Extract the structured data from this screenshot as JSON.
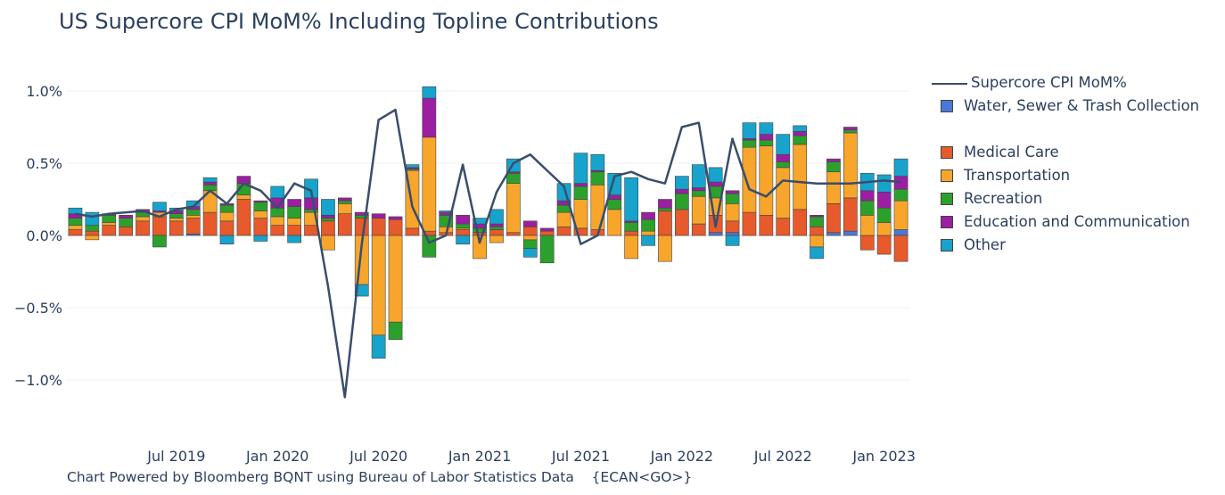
{
  "title": "US Supercore CPI MoM% Including Topline Contributions",
  "source_note": "Chart Powered by Bloomberg BQNT using Bureau of Labor Statistics Data    {ECAN<GO>}",
  "chart_data": {
    "type": "bar",
    "barmode": "relative",
    "title": "US Supercore CPI MoM% Including Topline Contributions",
    "xlabel": "",
    "ylabel": "",
    "ylim": [
      -1.35,
      1.1
    ],
    "y_ticks": [
      1.0,
      0.5,
      0.0,
      -0.5,
      -1.0
    ],
    "y_tick_labels": [
      "1.0%",
      "0.5%",
      "0.0%",
      "−0.5%",
      "−1.0%"
    ],
    "x_ticks": [
      {
        "index": 6,
        "label": "Jul 2019"
      },
      {
        "index": 12,
        "label": "Jan 2020"
      },
      {
        "index": 18,
        "label": "Jul 2020"
      },
      {
        "index": 24,
        "label": "Jan 2021"
      },
      {
        "index": 30,
        "label": "Jul 2021"
      },
      {
        "index": 36,
        "label": "Jan 2022"
      },
      {
        "index": 42,
        "label": "Jul 2022"
      },
      {
        "index": 48,
        "label": "Jan 2023"
      }
    ],
    "grid": true,
    "legend_position": "right",
    "categories": [
      "2019-01",
      "2019-02",
      "2019-03",
      "2019-04",
      "2019-05",
      "2019-06",
      "2019-07",
      "2019-08",
      "2019-09",
      "2019-10",
      "2019-11",
      "2019-12",
      "2020-01",
      "2020-02",
      "2020-03",
      "2020-04",
      "2020-05",
      "2020-06",
      "2020-07",
      "2020-08",
      "2020-09",
      "2020-10",
      "2020-11",
      "2020-12",
      "2021-01",
      "2021-02",
      "2021-03",
      "2021-04",
      "2021-05",
      "2021-06",
      "2021-07",
      "2021-08",
      "2021-09",
      "2021-10",
      "2021-11",
      "2021-12",
      "2022-01",
      "2022-02",
      "2022-03",
      "2022-04",
      "2022-05",
      "2022-06",
      "2022-07",
      "2022-08",
      "2022-09",
      "2022-10",
      "2022-11",
      "2022-12",
      "2023-01",
      "2023-02"
    ],
    "series": [
      {
        "name": "Water, Sewer & Trash Collection",
        "color": "#4a78d6",
        "values": [
          0.0,
          0.0,
          0.0,
          0.0,
          0.0,
          0.0,
          0.0,
          0.01,
          0.0,
          0.0,
          0.0,
          0.0,
          0.0,
          0.0,
          0.0,
          0.0,
          0.0,
          0.0,
          0.0,
          0.0,
          0.0,
          0.0,
          0.0,
          0.0,
          0.0,
          0.0,
          0.0,
          0.0,
          0.0,
          0.0,
          0.0,
          0.0,
          0.0,
          0.0,
          0.0,
          0.0,
          0.0,
          0.0,
          0.02,
          0.02,
          0.0,
          0.0,
          0.0,
          0.0,
          0.0,
          0.02,
          0.03,
          0.0,
          0.0,
          0.04
        ]
      },
      {
        "name": "Medical Care",
        "color": "#e65a2c",
        "values": [
          0.04,
          0.03,
          0.07,
          0.06,
          0.1,
          0.13,
          0.1,
          0.11,
          0.16,
          0.1,
          0.25,
          0.12,
          0.07,
          0.07,
          0.07,
          0.1,
          0.15,
          0.12,
          0.12,
          0.11,
          0.05,
          0.03,
          0.02,
          0.04,
          0.02,
          0.04,
          0.02,
          0.06,
          0.03,
          0.06,
          0.05,
          0.04,
          0.0,
          0.03,
          0.0,
          0.17,
          0.18,
          0.08,
          0.12,
          0.08,
          0.16,
          0.14,
          0.12,
          0.18,
          0.06,
          0.2,
          0.23,
          -0.1,
          -0.13,
          -0.18
        ]
      },
      {
        "name": "Transportation",
        "color": "#f7a52b",
        "values": [
          0.03,
          -0.03,
          0.02,
          0.0,
          0.03,
          0.03,
          0.02,
          0.02,
          0.15,
          0.06,
          0.03,
          0.05,
          0.06,
          0.05,
          0.09,
          -0.1,
          0.07,
          -0.34,
          -0.69,
          -0.6,
          0.4,
          0.65,
          0.04,
          0.01,
          -0.16,
          -0.05,
          0.34,
          -0.03,
          0.0,
          0.1,
          0.2,
          0.31,
          0.18,
          -0.16,
          0.03,
          -0.18,
          0.0,
          0.19,
          0.12,
          0.12,
          0.45,
          0.48,
          0.35,
          0.45,
          -0.08,
          0.22,
          0.45,
          0.14,
          0.09,
          0.2
        ]
      },
      {
        "name": "Recreation",
        "color": "#2ca02c",
        "values": [
          0.05,
          0.04,
          0.05,
          0.06,
          0.03,
          -0.08,
          0.03,
          0.04,
          0.04,
          0.05,
          0.08,
          0.06,
          0.06,
          0.08,
          0.02,
          0.02,
          0.02,
          0.02,
          0.0,
          -0.12,
          0.01,
          -0.15,
          0.08,
          0.03,
          0.03,
          0.02,
          0.07,
          -0.06,
          -0.19,
          0.05,
          0.09,
          0.09,
          0.07,
          0.06,
          0.08,
          0.02,
          0.11,
          0.04,
          0.08,
          0.07,
          0.05,
          0.04,
          0.04,
          0.06,
          0.07,
          0.07,
          0.02,
          0.1,
          0.1,
          0.08
        ]
      },
      {
        "name": "Education and Communication",
        "color": "#9b1ea3",
        "values": [
          0.03,
          0.0,
          0.01,
          0.02,
          0.02,
          0.01,
          0.02,
          0.02,
          0.02,
          0.01,
          0.05,
          0.01,
          0.07,
          0.05,
          0.08,
          0.02,
          0.02,
          0.02,
          0.03,
          0.02,
          0.01,
          0.27,
          0.02,
          0.06,
          0.03,
          0.02,
          0.01,
          0.04,
          0.02,
          0.03,
          0.02,
          0.01,
          0.03,
          0.01,
          0.05,
          0.06,
          0.03,
          0.02,
          0.03,
          0.02,
          0.01,
          0.04,
          0.05,
          0.03,
          0.01,
          0.02,
          0.02,
          0.07,
          0.11,
          0.09
        ]
      },
      {
        "name": "Other",
        "color": "#17a3cc",
        "values": [
          0.04,
          0.09,
          0.0,
          0.0,
          0.0,
          0.06,
          0.02,
          0.04,
          0.03,
          -0.06,
          0.0,
          -0.04,
          0.08,
          -0.05,
          0.13,
          0.11,
          0.0,
          -0.08,
          -0.16,
          0.0,
          0.02,
          0.08,
          0.01,
          -0.06,
          0.04,
          0.1,
          0.09,
          -0.06,
          0.0,
          0.12,
          0.21,
          0.11,
          0.15,
          0.3,
          -0.07,
          0.0,
          0.09,
          0.16,
          0.1,
          -0.07,
          0.11,
          0.08,
          0.14,
          0.04,
          -0.08,
          0.0,
          0.0,
          0.12,
          0.12,
          0.12
        ]
      }
    ],
    "line_series": {
      "name": "Supercore CPI MoM%",
      "color": "#3a4d6b",
      "values": [
        0.15,
        0.13,
        0.15,
        0.16,
        0.17,
        0.13,
        0.18,
        0.2,
        0.31,
        0.22,
        0.36,
        0.31,
        0.19,
        0.36,
        0.31,
        -0.35,
        -1.12,
        -0.06,
        0.8,
        0.87,
        0.2,
        -0.05,
        0.0,
        0.49,
        -0.05,
        0.3,
        0.5,
        0.56,
        0.45,
        0.34,
        -0.06,
        0.0,
        0.41,
        0.44,
        0.39,
        0.36,
        0.75,
        0.78,
        0.06,
        0.67,
        0.32,
        0.27,
        0.38,
        0.37,
        0.36,
        0.36,
        0.36,
        0.37,
        0.38,
        0.37
      ]
    }
  }
}
